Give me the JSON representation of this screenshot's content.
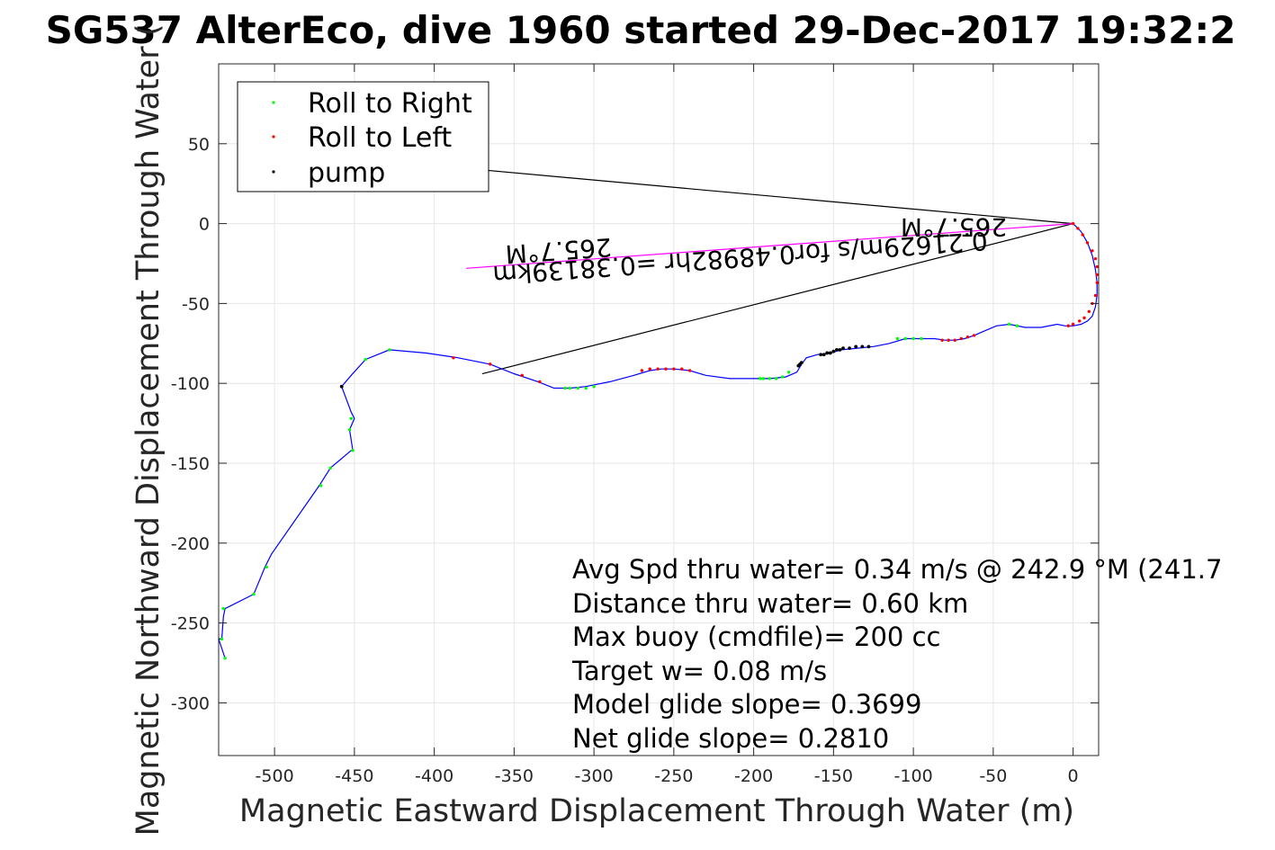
{
  "chart_data": {
    "type": "line",
    "title": "SG537 AlterEco, dive 1960 started 29-Dec-2017 19:32:2",
    "xlabel": "Magnetic Eastward Displacement Through Water (m)",
    "ylabel": "Magnetic Northward Displacement Through Water (",
    "xlim": [
      -535,
      16
    ],
    "ylim": [
      -333,
      100
    ],
    "xticks": [
      -500,
      -450,
      -400,
      -350,
      -300,
      -250,
      -200,
      -150,
      -100,
      -50,
      0
    ],
    "yticks": [
      50,
      0,
      -50,
      -100,
      -150,
      -200,
      -250,
      -300
    ],
    "grid": true,
    "legend_position": "top-left",
    "legend": [
      {
        "label": "Roll to Right",
        "color": "#00ff00"
      },
      {
        "label": "Roll to Left",
        "color": "#ff0000"
      },
      {
        "label": "pump",
        "color": "#000000"
      }
    ],
    "track": {
      "color": "#0000ff",
      "x": [
        0,
        5,
        9,
        12,
        14,
        15,
        15,
        14,
        12,
        9,
        5,
        0,
        -5,
        -10,
        -20,
        -30,
        -40,
        -48,
        -55,
        -62,
        -68,
        -74,
        -80,
        -87,
        -95,
        -105,
        -115,
        -125,
        -135,
        -145,
        -152,
        -160,
        -167,
        -170,
        -173,
        -180,
        -190,
        -200,
        -215,
        -230,
        -240,
        -250,
        -258,
        -265,
        -275,
        -290,
        -305,
        -315,
        -325,
        -335,
        -350,
        -365,
        -385,
        -405,
        -428,
        -443,
        -452,
        -458,
        -452,
        -450,
        -453,
        -451,
        -452,
        -465,
        -472,
        -502,
        -506,
        -513,
        -531,
        -532,
        -533,
        -535,
        -531
      ],
      "y": [
        0,
        -5,
        -12,
        -20,
        -29,
        -37,
        -45,
        -52,
        -58,
        -61,
        -63,
        -64,
        -64,
        -63,
        -65,
        -65,
        -63,
        -64,
        -67,
        -70,
        -72,
        -73,
        -73,
        -72,
        -72,
        -72,
        -75,
        -77,
        -78,
        -79,
        -81,
        -82,
        -84,
        -88,
        -93,
        -96,
        -97,
        -97,
        -97,
        -95,
        -92,
        -91,
        -91,
        -92,
        -95,
        -99,
        -102,
        -103,
        -103,
        -99,
        -94,
        -88,
        -84,
        -81,
        -79,
        -85,
        -95,
        -102,
        -118,
        -122,
        -129,
        -142,
        -142,
        -153,
        -164,
        -207,
        -215,
        -232,
        -241,
        -246,
        -260,
        -260,
        -272
      ]
    },
    "roll_right": {
      "color": "#00ff00",
      "x": [
        -40,
        -35,
        -95,
        -100,
        -105,
        -110,
        -178,
        -182,
        -186,
        -190,
        -194,
        -196,
        -300,
        -305,
        -310,
        -315,
        -318,
        -533,
        -531,
        -452,
        -451,
        -453,
        -458,
        -465,
        -471,
        -505,
        -513,
        -532,
        -428,
        -443
      ],
      "y": [
        -63,
        -64,
        -72,
        -72,
        -72,
        -72,
        -93,
        -96,
        -97,
        -97,
        -97,
        -97,
        -102,
        -103,
        -103,
        -103,
        -103,
        -260,
        -272,
        -122,
        -142,
        -129,
        -102,
        -153,
        -164,
        -215,
        -232,
        -241,
        -79,
        -85
      ]
    },
    "roll_left": {
      "color": "#ff0000",
      "x": [
        0,
        3,
        6,
        9,
        12,
        14,
        15,
        15,
        15,
        14,
        12,
        10,
        7,
        4,
        0,
        -3,
        -62,
        -66,
        -70,
        -74,
        -78,
        -82,
        -240,
        -245,
        -250,
        -255,
        -260,
        -265,
        -270,
        -334,
        -345,
        -365,
        -388
      ],
      "y": [
        0,
        -3,
        -7,
        -12,
        -17,
        -22,
        -27,
        -32,
        -37,
        -45,
        -50,
        -55,
        -59,
        -61,
        -63,
        -64,
        -70,
        -71,
        -72,
        -73,
        -73,
        -73,
        -92,
        -91,
        -91,
        -91,
        -91,
        -91,
        -92,
        -99,
        -95,
        -88,
        -84
      ]
    },
    "pump": {
      "color": "#000000",
      "x": [
        -128,
        -132,
        -136,
        -140,
        -144,
        -146,
        -148,
        -150,
        -152,
        -154,
        -156,
        -158,
        -170,
        -171,
        -172,
        -458
      ],
      "y": [
        -77,
        -77,
        -77,
        -78,
        -78,
        -79,
        -79,
        -80,
        -81,
        -81,
        -82,
        -82,
        -87,
        -88,
        -89,
        -102
      ]
    },
    "lines": {
      "color": "#000000",
      "magenta": "#ff00ff",
      "legend_edge": "rgb(0,0,0)"
    },
    "annotations": {
      "angle_upper": "265.7°M",
      "speed_line": "0.21629m/s for0.48982hr =0.38139km",
      "angle_lower": "265.7°M"
    },
    "stats": [
      "Avg Spd thru water=  0.34 m/s @ 242.9 °M (241.7",
      "Distance thru water=  0.60 km",
      "Max buoy (cmdfile)= 200 cc",
      "Target w= 0.08 m/s",
      "Model glide slope= 0.3699",
      "Net glide slope= 0.2810"
    ]
  }
}
